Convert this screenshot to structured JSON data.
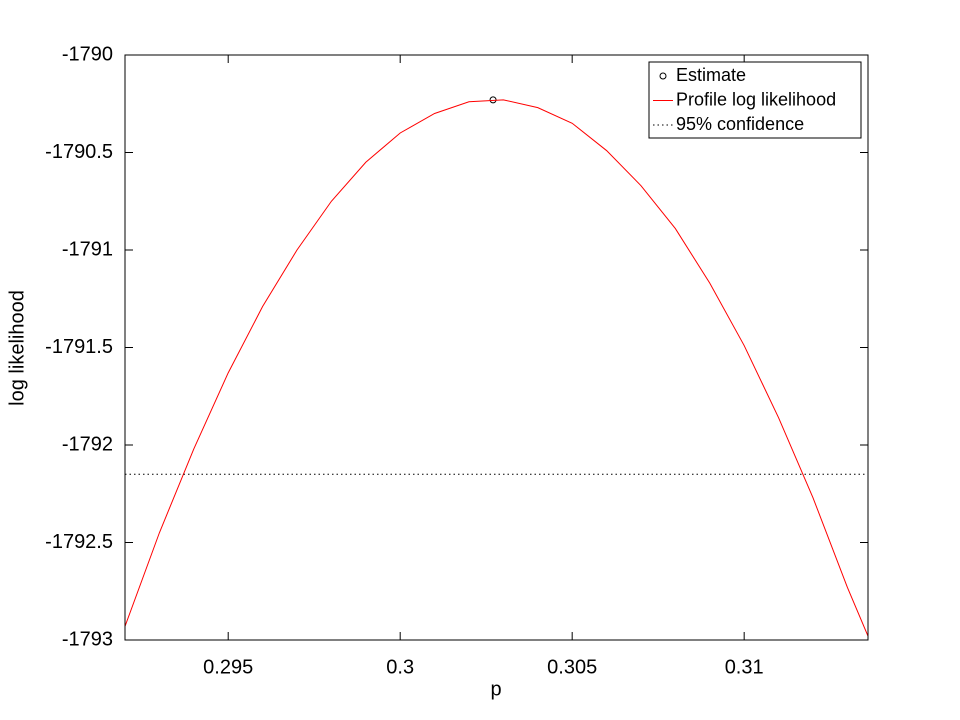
{
  "chart_data": {
    "type": "line",
    "xlabel": "p",
    "ylabel": "log likelihood",
    "xlim": [
      0.292,
      0.3136
    ],
    "ylim": [
      -1793,
      -1790
    ],
    "xticks": [
      0.295,
      0.3,
      0.305,
      0.31
    ],
    "yticks": [
      -1793,
      -1792.5,
      -1792,
      -1791.5,
      -1791,
      -1790.5,
      -1790
    ],
    "grid": false,
    "legend_location": "northeast",
    "series": [
      {
        "name": "Estimate",
        "color": "#000000",
        "marker": "circle",
        "x": [
          0.3027
        ],
        "values": [
          -1790.23
        ]
      },
      {
        "name": "Profile log likelihood",
        "color": "#ff0000",
        "style": "solid",
        "x": [
          0.292,
          0.293,
          0.294,
          0.295,
          0.296,
          0.297,
          0.298,
          0.299,
          0.3,
          0.301,
          0.302,
          0.303,
          0.304,
          0.305,
          0.306,
          0.307,
          0.308,
          0.309,
          0.31,
          0.311,
          0.312,
          0.313,
          0.3136
        ],
        "values": [
          -1792.93,
          -1792.45,
          -1792.02,
          -1791.63,
          -1791.29,
          -1791.0,
          -1790.75,
          -1790.55,
          -1790.4,
          -1790.3,
          -1790.24,
          -1790.23,
          -1790.27,
          -1790.35,
          -1790.49,
          -1790.67,
          -1790.89,
          -1791.17,
          -1791.49,
          -1791.86,
          -1792.27,
          -1792.73,
          -1792.98
        ]
      },
      {
        "name": "95% confidence",
        "color": "#000000",
        "style": "dotted",
        "x": [
          0.292,
          0.3136
        ],
        "values": [
          -1792.15,
          -1792.15
        ]
      }
    ]
  }
}
